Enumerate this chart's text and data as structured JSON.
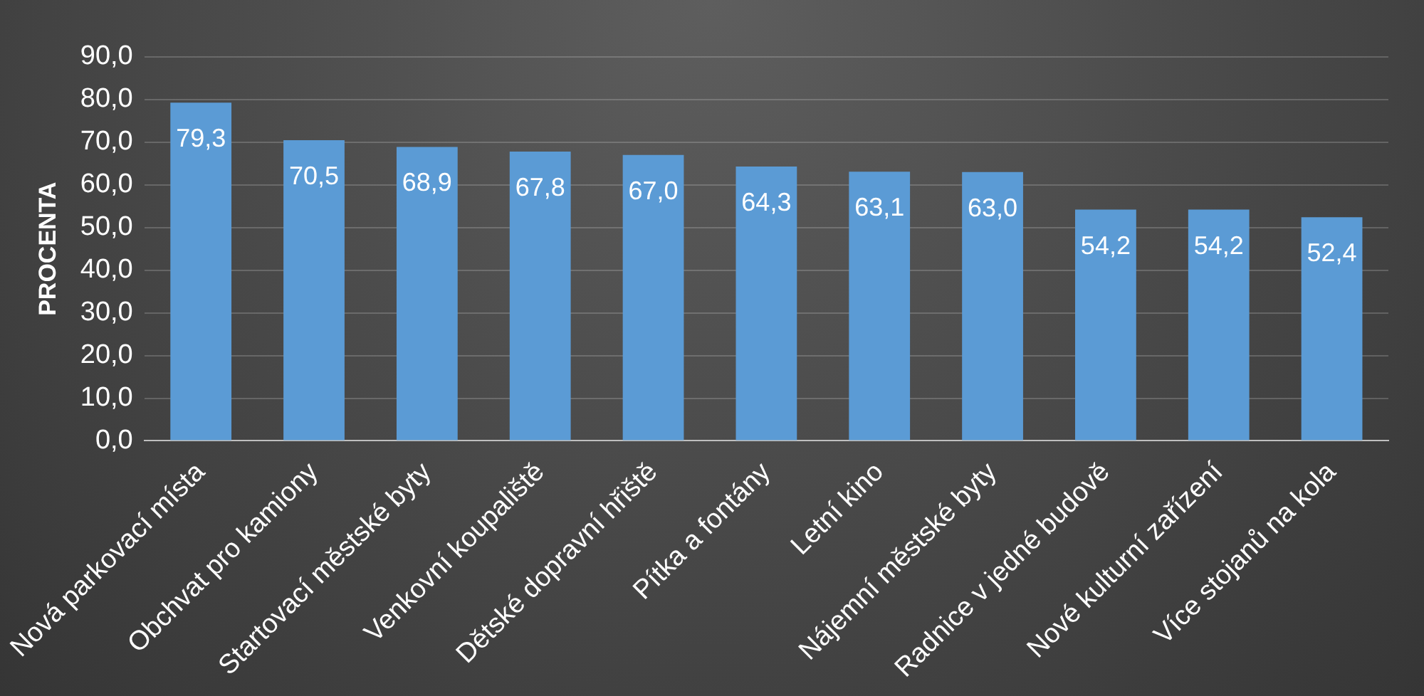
{
  "chart_data": {
    "type": "bar",
    "ylabel": "PROCENTA",
    "categories": [
      "Nová parkovací místa",
      "Obchvat pro kamiony",
      "Startovací městské byty",
      "Venkovní koupaliště",
      "Dětské dopravní hřiště",
      "Pítka a fontány",
      "Letní kino",
      "Nájemní městské byty",
      "Radnice v jedné budově",
      "Nové kulturní zařízení",
      "Více stojanů na kola"
    ],
    "values": [
      79.3,
      70.5,
      68.9,
      67.8,
      67.0,
      64.3,
      63.1,
      63.0,
      54.2,
      54.2,
      52.4
    ],
    "value_labels": [
      "79,3",
      "70,5",
      "68,9",
      "67,8",
      "67,0",
      "64,3",
      "63,1",
      "63,0",
      "54,2",
      "54,2",
      "52,4"
    ],
    "color": "#5b9bd5",
    "ylim": [
      0,
      90
    ],
    "yticks": [
      {
        "value": 0,
        "label": "0,0"
      },
      {
        "value": 10,
        "label": "10,0"
      },
      {
        "value": 20,
        "label": "20,0"
      },
      {
        "value": 30,
        "label": "30,0"
      },
      {
        "value": 40,
        "label": "40,0"
      },
      {
        "value": 50,
        "label": "50,0"
      },
      {
        "value": 60,
        "label": "60,0"
      },
      {
        "value": 70,
        "label": "70,0"
      },
      {
        "value": 80,
        "label": "80,0"
      },
      {
        "value": 90,
        "label": "90,0"
      }
    ],
    "grid": "y",
    "legend": false
  }
}
